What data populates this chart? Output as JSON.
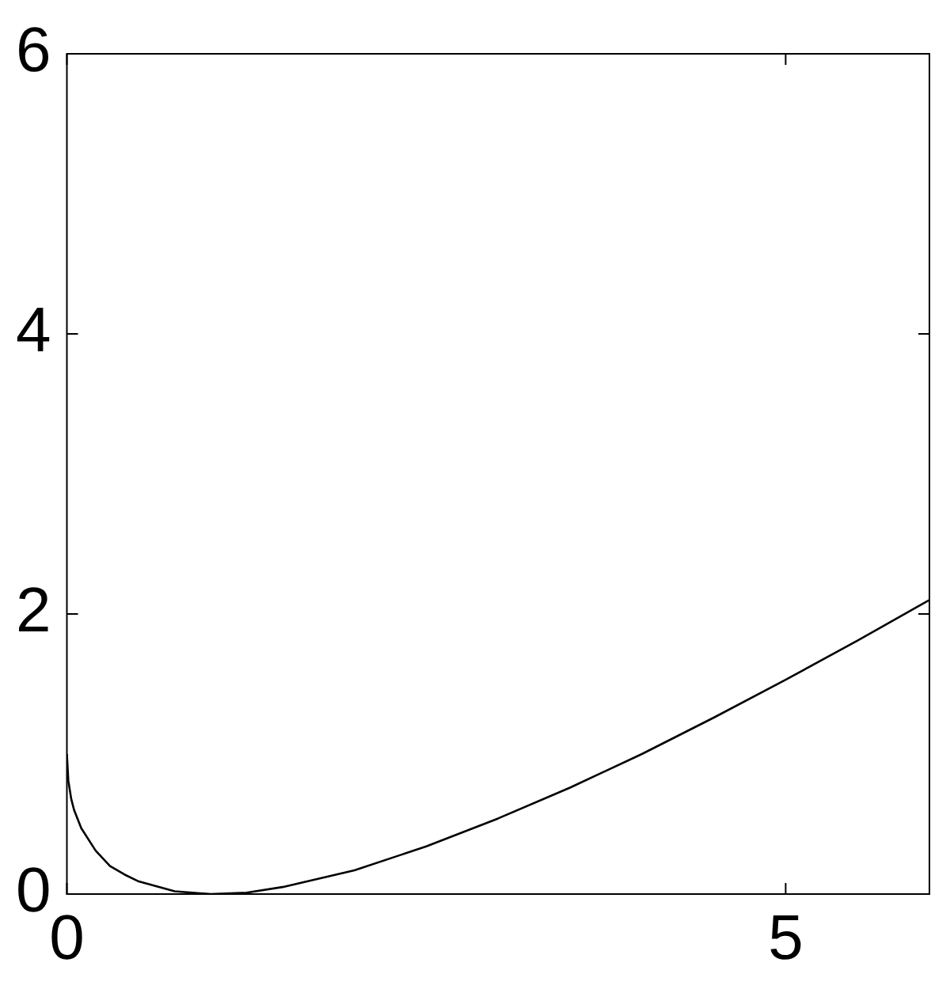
{
  "chart_data": {
    "type": "line",
    "series": [
      {
        "color": "#000000",
        "x": [
          0,
          0.01,
          0.03,
          0.05,
          0.1,
          0.2,
          0.3,
          0.4,
          0.5,
          0.75,
          1,
          1.25,
          1.5,
          2,
          2.5,
          3,
          3.5,
          4,
          4.5,
          5,
          5.5,
          6
        ],
        "values": [
          1,
          0.81,
          0.68,
          0.6,
          0.47,
          0.31,
          0.2,
          0.14,
          0.09,
          0.02,
          0,
          0.01,
          0.05,
          0.17,
          0.34,
          0.54,
          0.76,
          1.0,
          1.26,
          1.53,
          1.81,
          2.1
        ]
      }
    ],
    "xlim": [
      0,
      6
    ],
    "xticks": [
      0,
      5
    ],
    "ylim": [
      0,
      6
    ],
    "yticks": [
      0,
      2,
      4,
      6
    ],
    "grid": false,
    "legend": false,
    "marker": "none",
    "line_style": "solid"
  }
}
